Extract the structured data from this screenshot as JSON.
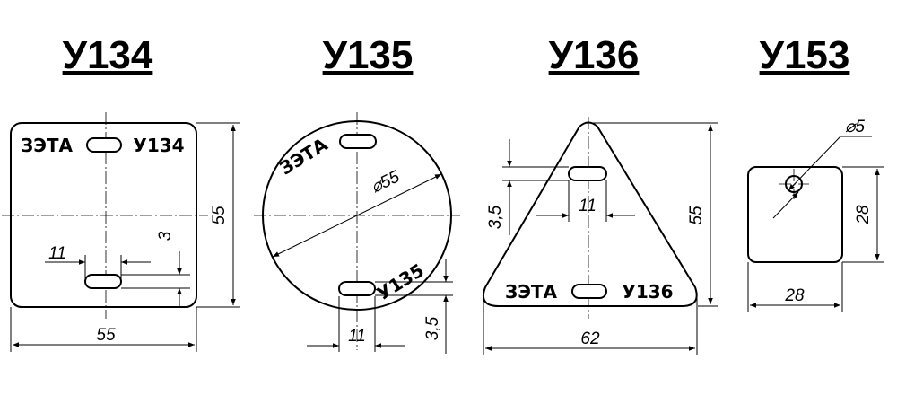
{
  "plates": [
    {
      "title": "У134",
      "marking_left": "ЗЭТА",
      "marking_right": "У134",
      "dims": {
        "width": "55",
        "height": "55",
        "slot_length": "11",
        "slot_height": "3"
      }
    },
    {
      "title": "У135",
      "marking_top": "ЗЭТА",
      "marking_bottom": "У135",
      "dims": {
        "diameter": "⌀55",
        "slot_length": "11",
        "slot_height": "3,5"
      }
    },
    {
      "title": "У136",
      "marking_left": "ЗЭТА",
      "marking_right": "У136",
      "dims": {
        "base": "62",
        "height": "55",
        "slot_length": "11",
        "slot_height": "3,5"
      }
    },
    {
      "title": "У153",
      "dims": {
        "width": "28",
        "height": "28",
        "hole_diameter": "⌀5"
      }
    }
  ]
}
